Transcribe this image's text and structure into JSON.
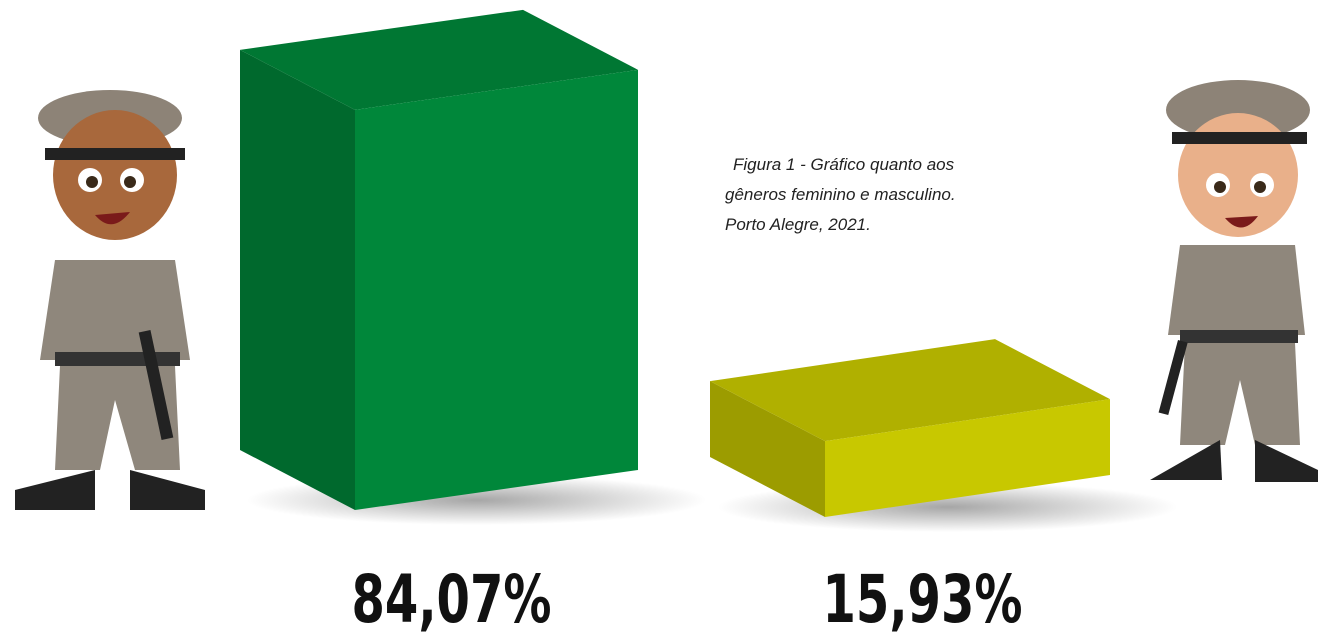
{
  "chart_data": {
    "type": "bar3d",
    "title": [
      "Figura 1 - Gráfico quanto aos",
      "gêneros feminino e masculino.",
      "Porto Alegre, 2021."
    ],
    "categories": [
      null,
      null
    ],
    "values": [
      84.07,
      15.93
    ],
    "value_labels": [
      "84,07%",
      "15,93%"
    ],
    "colors": [
      "#00873a",
      "#c8c800"
    ]
  }
}
